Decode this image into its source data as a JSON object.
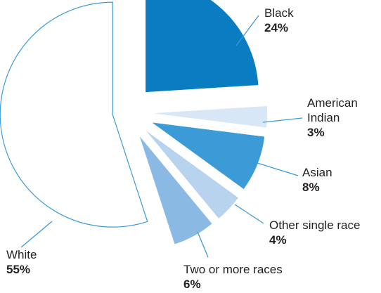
{
  "chart_data": {
    "type": "pie",
    "title": "",
    "exploded": true,
    "slices": [
      {
        "label": [
          "Black"
        ],
        "percent_label": "24%",
        "value": 24,
        "color": "#0a7cc1",
        "stroke": "#0a7cc1"
      },
      {
        "label": [
          "American",
          "Indian"
        ],
        "percent_label": "3%",
        "value": 3,
        "color": "#d7e7f6",
        "stroke": "#d7e7f6"
      },
      {
        "label": [
          "Asian"
        ],
        "percent_label": "8%",
        "value": 8,
        "color": "#3b9bd6",
        "stroke": "#3b9bd6"
      },
      {
        "label": [
          "Other single race"
        ],
        "percent_label": "4%",
        "value": 4,
        "color": "#b8d3ee",
        "stroke": "#b8d3ee"
      },
      {
        "label": [
          "Two or more races"
        ],
        "percent_label": "6%",
        "value": 6,
        "color": "#8ab9e3",
        "stroke": "#8ab9e3"
      },
      {
        "label": [
          "White"
        ],
        "percent_label": "55%",
        "value": 55,
        "color": "#ffffff",
        "stroke": "#3b9bd6"
      }
    ],
    "leader_line_color": "#3b9bd6"
  }
}
